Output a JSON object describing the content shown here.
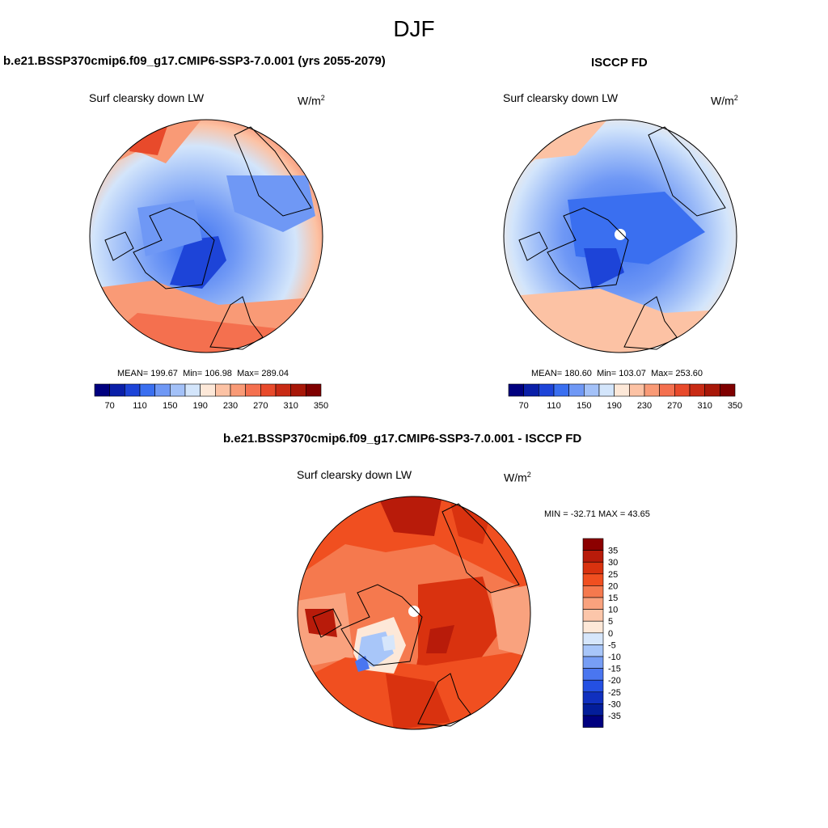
{
  "season": "DJF",
  "top_left": {
    "title": "b.e21.BSSP370cmip6.f09_g17.CMIP6-SSP3-7.0.001 (yrs 2055-2079)",
    "variable": "Surf clearsky down LW",
    "units_base": "W/m",
    "units_exp": "2",
    "stats": {
      "mean_label": "MEAN=",
      "mean": "199.67",
      "min_label": "Min=",
      "min": "106.98",
      "max_label": "Max=",
      "max": "289.04"
    }
  },
  "top_right": {
    "title": "ISCCP FD",
    "variable": "Surf clearsky down LW",
    "units_base": "W/m",
    "units_exp": "2",
    "stats": {
      "mean_label": "MEAN=",
      "mean": "180.60",
      "min_label": "Min=",
      "min": "103.07",
      "max_label": "Max=",
      "max": "253.60"
    }
  },
  "bottom": {
    "title": "b.e21.BSSP370cmip6.f09_g17.CMIP6-SSP3-7.0.001 - ISCCP FD",
    "variable": "Surf clearsky down LW",
    "units_base": "W/m",
    "units_exp": "2",
    "minmax": "MIN = -32.71 MAX =  43.65"
  },
  "abs_colorbar": {
    "ticks": [
      "70",
      "110",
      "150",
      "190",
      "230",
      "270",
      "310",
      "350"
    ],
    "colors": [
      "#00007f",
      "#0a1fa8",
      "#1d44d8",
      "#3a6ff0",
      "#6f98f5",
      "#a3c1f8",
      "#d3e5fb",
      "#fde8d8",
      "#fcc2a4",
      "#f99a76",
      "#f4704f",
      "#e84a2b",
      "#c82a14",
      "#a81708",
      "#7f0000"
    ]
  },
  "diff_colorbar": {
    "ticks": [
      "35",
      "30",
      "25",
      "20",
      "15",
      "10",
      "5",
      "0",
      "-5",
      "-10",
      "-15",
      "-20",
      "-25",
      "-30",
      "-35"
    ],
    "colors": [
      "#8c0000",
      "#b81b0a",
      "#d9320f",
      "#f04f20",
      "#f5794e",
      "#f9a27e",
      "#fcc6aa",
      "#fde8d8",
      "#d6e6fb",
      "#a8c6f9",
      "#779ef5",
      "#4a76f0",
      "#2450e3",
      "#1030bf",
      "#031d9a",
      "#000080"
    ]
  }
}
